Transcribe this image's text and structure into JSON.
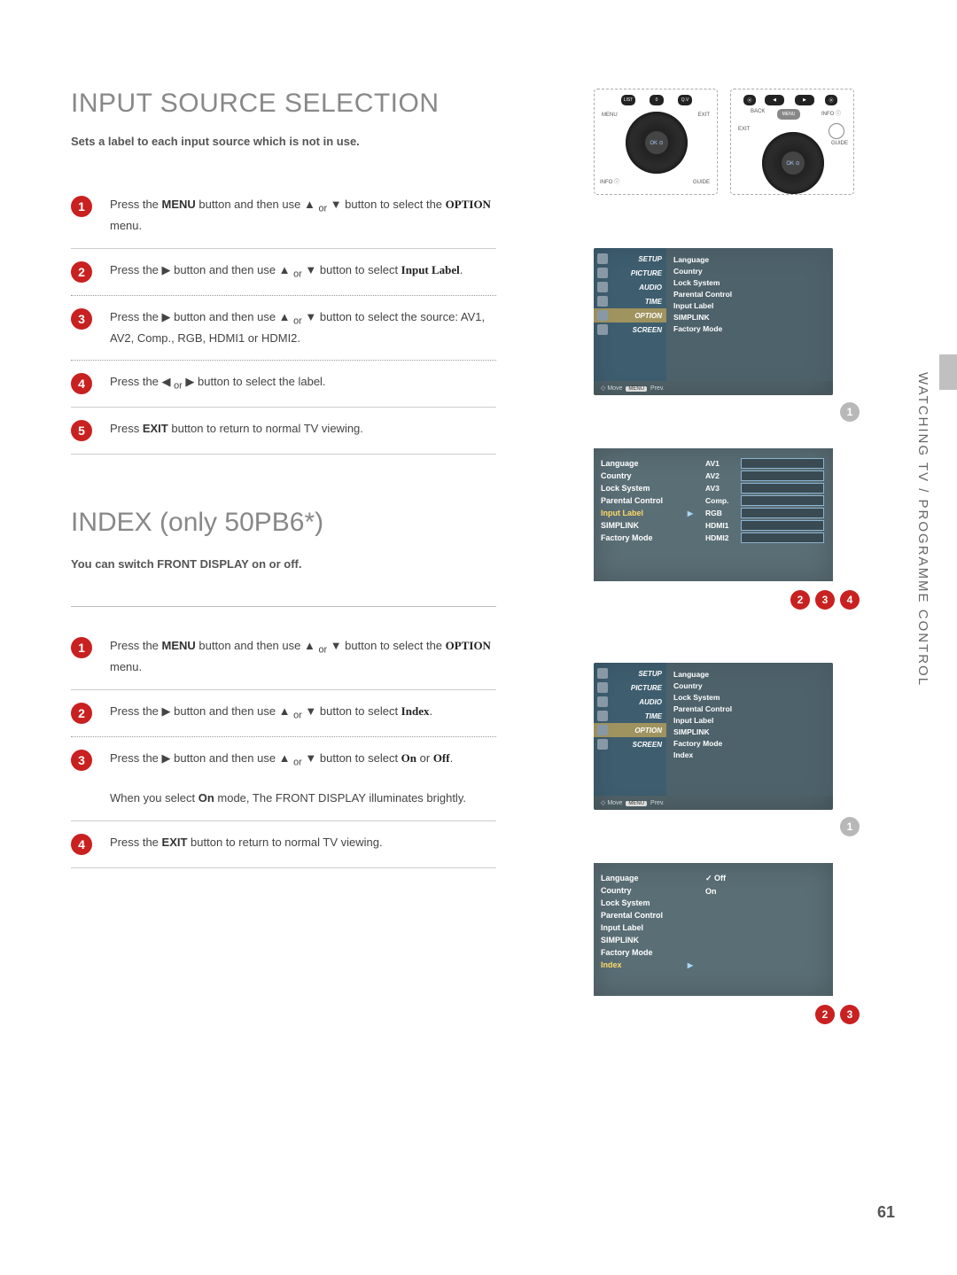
{
  "page_number": "61",
  "side_label": "WATCHING TV / PROGRAMME CONTROL",
  "colors": {
    "step_badge_red": "#c92020",
    "step_badge_gray": "#b8b8b8",
    "heading_gray": "#888888",
    "tv_menu_bg": "#5a6e75",
    "tv_tab_active": "rgba(255,200,80,0.5)"
  },
  "section1": {
    "title": "INPUT SOURCE SELECTION",
    "subtitle": "Sets a label to each input source which is not in use.",
    "steps": [
      {
        "n": "1",
        "html": "Press the <b>MENU</b> button and then use ▲ <sub>or</sub> ▼ button to select the <span class='serif-b'>OPTION</span> menu."
      },
      {
        "n": "2",
        "html": "Press the ▶ button and then use ▲ <sub>or</sub> ▼ button to select <span class='serif-b'>Input Label</span>."
      },
      {
        "n": "3",
        "html": "Press the ▶ button and then use ▲ <sub>or</sub> ▼ button to select the source: AV1, AV2, Comp., RGB, HDMI1 or HDMI2."
      },
      {
        "n": "4",
        "html": "Press the ◀ <sub>or</sub> ▶ button to select the label."
      },
      {
        "n": "5",
        "html": "Press <b>EXIT</b> button to return to normal TV viewing."
      }
    ]
  },
  "section2": {
    "title": "INDEX (only 50PB6*)",
    "subtitle": "You can switch FRONT DISPLAY on or off.",
    "steps": [
      {
        "n": "1",
        "html": "Press the <b>MENU</b> button and then use ▲ <sub>or</sub> ▼ button to select the <span class='serif-b'>OPTION</span> menu."
      },
      {
        "n": "2",
        "html": "Press the ▶ button and then use ▲ <sub>or</sub> ▼ button to select <span class='serif-b'>Index</span>."
      },
      {
        "n": "3",
        "html": "Press the ▶ button and then use ▲ <sub>or</sub> ▼ button to select <span class='serif-b'>On</span> or <span class='serif-b'>Off</span>.<br><br>When you select <b>On</b> mode, The FRONT DISPLAY illuminates brightly."
      },
      {
        "n": "4",
        "html": "Press the <b>EXIT</b> button to return to normal TV viewing."
      }
    ]
  },
  "remote1": {
    "top_btns": [
      "LIST",
      "0",
      "Q.V"
    ],
    "labels": {
      "menu": "MENU",
      "exit": "EXIT",
      "info": "INFO ⓘ",
      "guide": "GUIDE",
      "ok": "OK\n⊙"
    }
  },
  "remote2": {
    "top_btns": [
      "⦿",
      "◀",
      "▶",
      "⦿"
    ],
    "labels": {
      "back": "BACK",
      "menu": "MENU",
      "info": "INFO ⓘ",
      "exit": "EXIT",
      "guide": "GUIDE",
      "ok": "OK\n⊙"
    }
  },
  "tv_menu1": {
    "tabs": [
      "SETUP",
      "PICTURE",
      "AUDIO",
      "TIME",
      "OPTION",
      "SCREEN"
    ],
    "active_tab": "OPTION",
    "options": [
      "Language",
      "Country",
      "Lock System",
      "Parental Control",
      "Input Label",
      "SIMPLINK",
      "Factory Mode"
    ],
    "footer_move": "Move",
    "footer_prev": "Prev."
  },
  "tv_menu_inputlabel": {
    "left_options": [
      "Language",
      "Country",
      "Lock System",
      "Parental Control",
      "Input Label",
      "SIMPLINK",
      "Factory Mode"
    ],
    "active_left": "Input Label",
    "inputs": [
      "AV1",
      "AV2",
      "AV3",
      "Comp.",
      "RGB",
      "HDMI1",
      "HDMI2"
    ]
  },
  "badges_section1": [
    "2",
    "3",
    "4"
  ],
  "tv_menu2": {
    "tabs": [
      "SETUP",
      "PICTURE",
      "AUDIO",
      "TIME",
      "OPTION",
      "SCREEN"
    ],
    "active_tab": "OPTION",
    "options": [
      "Language",
      "Country",
      "Lock System",
      "Parental Control",
      "Input Label",
      "SIMPLINK",
      "Factory Mode",
      "Index"
    ],
    "footer_move": "Move",
    "footer_prev": "Prev."
  },
  "tv_menu_index": {
    "left_options": [
      "Language",
      "Country",
      "Lock System",
      "Parental Control",
      "Input Label",
      "SIMPLINK",
      "Factory Mode",
      "Index"
    ],
    "active_left": "Index",
    "options": [
      "Off",
      "On"
    ],
    "selected": "Off"
  },
  "badges_section2": [
    "2",
    "3"
  ]
}
